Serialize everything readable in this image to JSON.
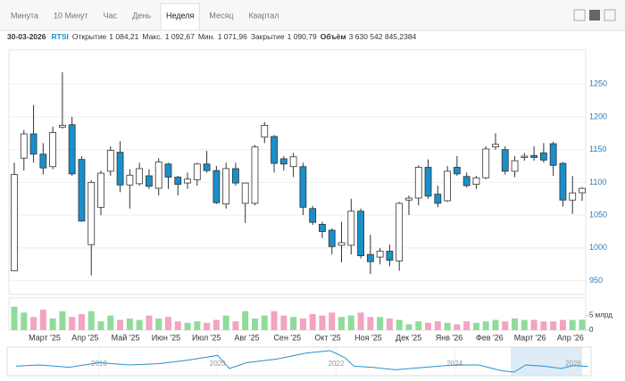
{
  "toolbar": {
    "tabs": [
      "Минута",
      "10 Минут",
      "Час",
      "День",
      "Неделя",
      "Месяц",
      "Квартал"
    ],
    "active": "Неделя"
  },
  "header": {
    "date": "30-03-2026",
    "ticker": "RTSI",
    "fields": [
      {
        "label": "Открытие",
        "value": "1 084,21"
      },
      {
        "label": "Макс.",
        "value": "1 092,67"
      },
      {
        "label": "Мин.",
        "value": "1 071,96"
      },
      {
        "label": "Закрытие",
        "value": "1 090,79"
      },
      {
        "label": "Объём",
        "value": "3 630 542 845,2384"
      }
    ]
  },
  "chart_data": [
    {
      "type": "candlestick",
      "months": [
        "Март '25",
        "Апр '25",
        "Май '25",
        "Июн '25",
        "Июл '25",
        "Авг '25",
        "Сен '25",
        "Окт '25",
        "Ноя '25",
        "Дек '25",
        "Янв '26",
        "Фев '26",
        "Март '26",
        "Апр '26"
      ],
      "up_color": "#ffffff",
      "down_color": "#1a8fc9",
      "open": [
        965,
        1137,
        1174,
        1143,
        1124,
        1184,
        1188,
        1135,
        1005,
        1062,
        1117,
        1146,
        1096,
        1098,
        1110,
        1091,
        1128,
        1108,
        1099,
        1104,
        1128,
        1118,
        1067,
        1121,
        1068,
        1068,
        1169,
        1170,
        1136,
        1124,
        1124,
        1060,
        1036,
        1027,
        1004,
        1004,
        1056,
        990,
        986,
        995,
        980,
        1073,
        1076,
        1123,
        1082,
        1072,
        1123,
        1109,
        1097,
        1107,
        1154,
        1150,
        1117,
        1138,
        1141,
        1145,
        1159,
        1129,
        1073,
        1084.21
      ],
      "high": [
        1130,
        1180,
        1218,
        1160,
        1185,
        1268,
        1200,
        1140,
        1103,
        1118,
        1155,
        1163,
        1120,
        1130,
        1120,
        1137,
        1130,
        1110,
        1115,
        1130,
        1148,
        1125,
        1130,
        1130,
        1100,
        1157,
        1192,
        1172,
        1140,
        1145,
        1130,
        1064,
        1040,
        1030,
        1040,
        1075,
        1060,
        1020,
        1000,
        1005,
        1070,
        1080,
        1126,
        1135,
        1095,
        1125,
        1140,
        1115,
        1110,
        1155,
        1175,
        1155,
        1140,
        1145,
        1155,
        1160,
        1162,
        1131,
        1110,
        1092.67
      ],
      "low": [
        965,
        1118,
        1130,
        1112,
        1120,
        1182,
        1110,
        1040,
        958,
        1050,
        1110,
        1085,
        1060,
        1095,
        1090,
        1080,
        1090,
        1080,
        1090,
        1095,
        1115,
        1067,
        1060,
        1095,
        1038,
        1065,
        1160,
        1115,
        1118,
        1108,
        1050,
        1035,
        1015,
        990,
        978,
        990,
        984,
        960,
        975,
        972,
        965,
        1050,
        1065,
        1075,
        1062,
        1070,
        1110,
        1092,
        1090,
        1105,
        1150,
        1112,
        1108,
        1133,
        1133,
        1130,
        1110,
        1063,
        1052,
        1071.96
      ],
      "close": [
        1112,
        1174,
        1143,
        1122,
        1176,
        1187,
        1113,
        1041,
        1100,
        1114,
        1149,
        1096,
        1111,
        1121,
        1094,
        1131,
        1108,
        1097,
        1105,
        1128,
        1118,
        1069,
        1121,
        1099,
        1099,
        1154,
        1187,
        1129,
        1128,
        1139,
        1062,
        1039,
        1025,
        1002,
        1008,
        1056,
        988,
        979,
        995,
        981,
        1068,
        1076,
        1123,
        1079,
        1068,
        1117,
        1113,
        1095,
        1107,
        1151,
        1158,
        1117,
        1133,
        1140,
        1138,
        1134,
        1126,
        1073,
        1084,
        1090.79
      ],
      "ylim": [
        929,
        1302
      ],
      "yticks": [
        950,
        1000,
        1050,
        1100,
        1150,
        1200,
        1250
      ],
      "grid": true
    },
    {
      "type": "bar",
      "up_color": "#8fdc9a",
      "down_color": "#f4a3c0",
      "values": [
        8,
        6,
        4.5,
        7,
        4,
        6.5,
        4.5,
        5.5,
        6.5,
        3,
        5,
        3.5,
        4,
        3.5,
        5,
        4,
        4.5,
        3,
        2.5,
        3,
        2.5,
        3.5,
        5,
        3,
        6.5,
        4,
        5,
        6.5,
        5,
        4.5,
        4,
        5.5,
        5,
        6,
        4.5,
        5,
        6,
        4.5,
        4.5,
        4,
        3.5,
        2,
        3,
        2.5,
        3,
        2.5,
        2,
        3,
        2.5,
        3,
        3.5,
        3,
        4,
        3.5,
        3.5,
        3,
        3,
        3.5,
        3.5,
        3.6
      ],
      "ylim": [
        0,
        11
      ],
      "yticks": [
        0,
        {
          "value": 5,
          "label": "5 млрд"
        }
      ]
    },
    {
      "type": "line",
      "color": "#2a8fd0",
      "x": [
        2016.6,
        2017,
        2017.5,
        2018,
        2018.5,
        2019,
        2019.5,
        2020,
        2020.2,
        2020.5,
        2021,
        2021.5,
        2021.9,
        2022.15,
        2022.3,
        2022.6,
        2023,
        2023.5,
        2024,
        2024.4,
        2024.8,
        2025,
        2025.2,
        2025.5,
        2025.8,
        2026,
        2026.25
      ],
      "values": [
        1100,
        1150,
        1050,
        1250,
        1150,
        1200,
        1350,
        1550,
        1000,
        1250,
        1400,
        1650,
        1750,
        1450,
        1100,
        1050,
        950,
        1050,
        1150,
        1150,
        900,
        850,
        1150,
        1100,
        1000,
        1120,
        1090
      ],
      "xlim": [
        2016.45,
        2026.3
      ],
      "ylim": [
        700,
        1900
      ],
      "xticks": [
        2018,
        2020,
        2022,
        2024,
        2026
      ]
    }
  ]
}
